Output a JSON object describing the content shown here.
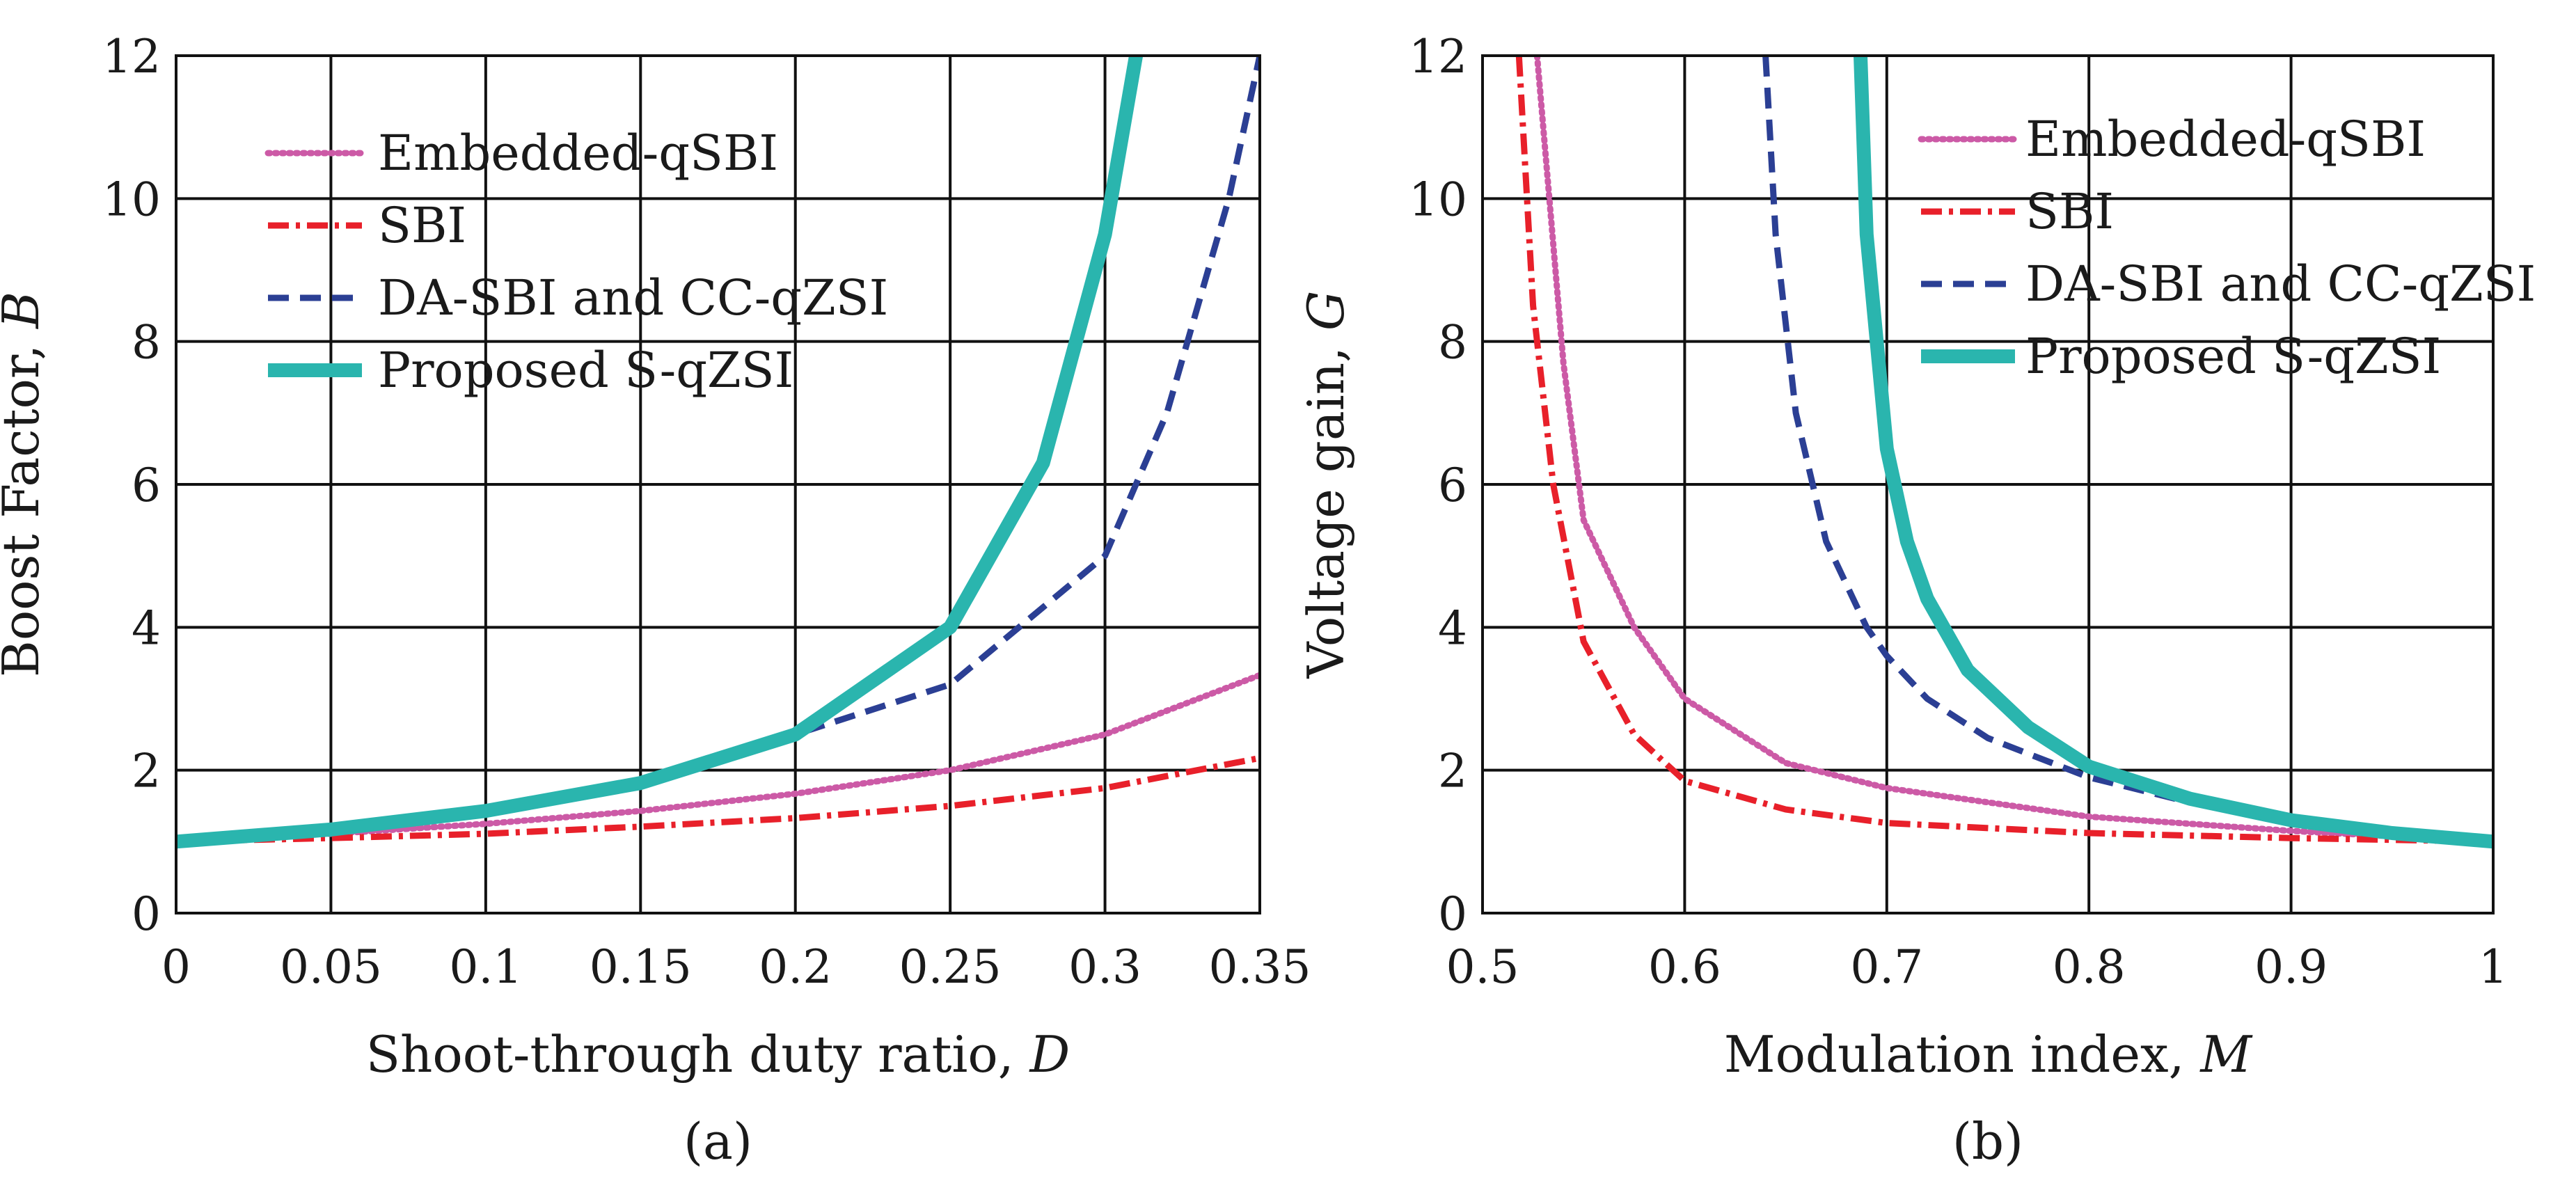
{
  "chart_data": [
    {
      "id": "a",
      "type": "line",
      "caption": "(a)",
      "title": "",
      "xlabel": {
        "text": "Shoot-through duty ratio, ",
        "var": "D"
      },
      "ylabel": {
        "text": "Boost Factor, ",
        "var": "B"
      },
      "xlim": [
        0,
        0.35
      ],
      "ylim": [
        0,
        12
      ],
      "xticks": [
        0,
        0.05,
        0.1,
        0.15,
        0.2,
        0.25,
        0.3,
        0.35
      ],
      "xtick_labels": [
        "0",
        "0.05",
        "0.1",
        "0.15",
        "0.2",
        "0.25",
        "0.3",
        "0.35"
      ],
      "yticks": [
        0,
        2,
        4,
        6,
        8,
        10,
        12
      ],
      "ytick_labels": [
        "0",
        "2",
        "4",
        "6",
        "8",
        "10",
        "12"
      ],
      "grid": true,
      "legend_position": "top-left",
      "series": [
        {
          "name": "Embedded-qSBI",
          "style": "dotted",
          "color": "#cc5aa6",
          "x": [
            0,
            0.05,
            0.1,
            0.15,
            0.2,
            0.25,
            0.3,
            0.35
          ],
          "y": [
            1.0,
            1.11,
            1.25,
            1.43,
            1.67,
            2.0,
            2.5,
            3.33
          ]
        },
        {
          "name": "SBI",
          "style": "dashdot",
          "color": "#e8202a",
          "x": [
            0,
            0.05,
            0.1,
            0.15,
            0.2,
            0.25,
            0.3,
            0.35
          ],
          "y": [
            1.0,
            1.05,
            1.11,
            1.21,
            1.33,
            1.5,
            1.75,
            2.17
          ]
        },
        {
          "name": "DA-SBI and CC-qZSI",
          "style": "dashed",
          "color": "#2b3f94",
          "x": [
            0,
            0.05,
            0.1,
            0.15,
            0.2,
            0.25,
            0.3,
            0.32,
            0.34,
            0.35
          ],
          "y": [
            1.0,
            1.18,
            1.43,
            1.82,
            2.5,
            3.2,
            5.0,
            7.0,
            10.0,
            12.0
          ]
        },
        {
          "name": "Proposed S-qZSI",
          "style": "solid-thick",
          "color": "#2ab5ae",
          "x": [
            0,
            0.05,
            0.1,
            0.15,
            0.2,
            0.25,
            0.28,
            0.3,
            0.31
          ],
          "y": [
            1.0,
            1.17,
            1.43,
            1.82,
            2.5,
            4.0,
            6.3,
            9.5,
            12.0
          ]
        }
      ]
    },
    {
      "id": "b",
      "type": "line",
      "caption": "(b)",
      "title": "",
      "xlabel": {
        "text": "Modulation index, ",
        "var": "M"
      },
      "ylabel": {
        "text": "Voltage gain, ",
        "var": "G"
      },
      "xlim": [
        0.5,
        1
      ],
      "ylim": [
        0,
        12
      ],
      "xticks": [
        0.5,
        0.6,
        0.7,
        0.8,
        0.9,
        1.0
      ],
      "xtick_labels": [
        "0.5",
        "0.6",
        "0.7",
        "0.8",
        "0.9",
        "1"
      ],
      "yticks": [
        0,
        2,
        4,
        6,
        8,
        10,
        12
      ],
      "ytick_labels": [
        "0",
        "2",
        "4",
        "6",
        "8",
        "10",
        "12"
      ],
      "grid": true,
      "legend_position": "top-right",
      "series": [
        {
          "name": "Embedded-qSBI",
          "style": "dotted",
          "color": "#cc5aa6",
          "x": [
            0.527,
            0.54,
            0.55,
            0.575,
            0.6,
            0.65,
            0.7,
            0.8,
            0.9,
            1.0
          ],
          "y": [
            12.0,
            7.7,
            5.5,
            4.0,
            3.0,
            2.1,
            1.75,
            1.35,
            1.15,
            1.0
          ]
        },
        {
          "name": "SBI",
          "style": "dashdot",
          "color": "#e8202a",
          "x": [
            0.518,
            0.525,
            0.535,
            0.55,
            0.575,
            0.6,
            0.65,
            0.7,
            0.8,
            0.9,
            1.0
          ],
          "y": [
            12.0,
            8.5,
            6.0,
            3.8,
            2.5,
            1.85,
            1.45,
            1.26,
            1.12,
            1.05,
            1.0
          ]
        },
        {
          "name": "DA-SBI and CC-qZSI",
          "style": "dashed",
          "color": "#2b3f94",
          "x": [
            0.64,
            0.645,
            0.655,
            0.67,
            0.69,
            0.7,
            0.72,
            0.75,
            0.8,
            0.85,
            0.9,
            1.0
          ],
          "y": [
            12.0,
            9.5,
            7.0,
            5.2,
            4.0,
            3.6,
            3.0,
            2.45,
            1.9,
            1.55,
            1.3,
            1.0
          ]
        },
        {
          "name": "Proposed S-qZSI",
          "style": "solid-thick",
          "color": "#2ab5ae",
          "x": [
            0.687,
            0.69,
            0.695,
            0.7,
            0.71,
            0.72,
            0.74,
            0.77,
            0.8,
            0.85,
            0.9,
            0.95,
            1.0
          ],
          "y": [
            12.0,
            9.5,
            8.0,
            6.5,
            5.2,
            4.4,
            3.4,
            2.6,
            2.05,
            1.6,
            1.3,
            1.12,
            1.0
          ]
        }
      ]
    }
  ]
}
